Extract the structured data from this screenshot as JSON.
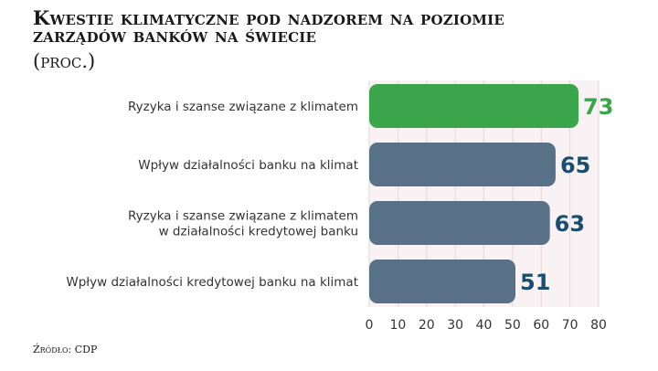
{
  "title": "Kwestie klimatyczne pod nadzorem na poziomie zarządów banków na świecie",
  "subtitle": "(proc.)",
  "source": "Źródło: CDP",
  "colors": {
    "highlight": "#3aa54a",
    "bar": "#587186",
    "value_highlight": "#3aa54a",
    "value": "#1b4d6e",
    "plot_bg": "#f8f2f4",
    "grid": "#e6d7dd"
  },
  "chart_data": {
    "type": "bar",
    "orientation": "horizontal",
    "categories": [
      [
        "Ryzyka i szanse związane z klimatem"
      ],
      [
        "Wpływ działalności banku na klimat"
      ],
      [
        "Ryzyka i szanse związane z klimatem",
        "w działalności kredytowej banku"
      ],
      [
        "Wpływ  działalności kredytowej banku na klimat"
      ]
    ],
    "values": [
      73,
      65,
      63,
      51
    ],
    "highlight_index": 0,
    "xlim": [
      0,
      80
    ],
    "xticks": [
      0,
      10,
      20,
      30,
      40,
      50,
      60,
      70,
      80
    ],
    "grid": true,
    "title": "",
    "xlabel": "",
    "ylabel": ""
  }
}
